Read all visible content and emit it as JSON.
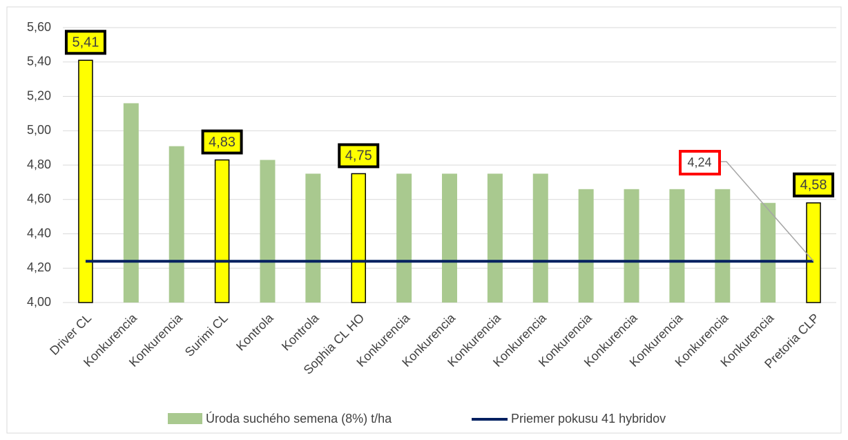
{
  "chart_data": {
    "type": "bar",
    "categories": [
      "Driver CL",
      "Konkurencia",
      "Konkurencia",
      "Surimi CL",
      "Kontrola",
      "Kontrola",
      "Sophia CL HO",
      "Konkurencia",
      "Konkurencia",
      "Konkurencia",
      "Konkurencia",
      "Konkurencia",
      "Konkurencia",
      "Konkurencia",
      "Konkurencia",
      "Konkurencia",
      "Pretoria CLP"
    ],
    "series": [
      {
        "name": "Úroda suchého semena (8%) t/ha",
        "color": "#a9c98f",
        "values": [
          5.41,
          5.16,
          4.91,
          4.83,
          4.83,
          4.75,
          4.75,
          4.75,
          4.75,
          4.75,
          4.75,
          4.66,
          4.66,
          4.66,
          4.66,
          4.58,
          4.58
        ],
        "value_labels": [
          "5,41",
          null,
          null,
          "4,83",
          null,
          null,
          "4,75",
          null,
          null,
          null,
          null,
          null,
          null,
          null,
          null,
          null,
          "4,58"
        ],
        "colors": [
          "#ffff00",
          "#a9c98f",
          "#a9c98f",
          "#ffff00",
          "#a9c98f",
          "#a9c98f",
          "#ffff00",
          "#a9c98f",
          "#a9c98f",
          "#a9c98f",
          "#a9c98f",
          "#a9c98f",
          "#a9c98f",
          "#a9c98f",
          "#a9c98f",
          "#a9c98f",
          "#ffff00"
        ],
        "edgecolors": [
          "#000000",
          null,
          null,
          "#000000",
          null,
          null,
          "#000000",
          null,
          null,
          null,
          null,
          null,
          null,
          null,
          null,
          null,
          "#000000"
        ]
      }
    ],
    "average": {
      "name": "Priemer pokusu 41 hybridov",
      "color": "#002060",
      "value": 4.24,
      "label": "4,24"
    },
    "ylim": [
      4.0,
      5.6
    ],
    "yticks": [
      {
        "value": 4.0,
        "label": "4,00"
      },
      {
        "value": 4.2,
        "label": "4,20"
      },
      {
        "value": 4.4,
        "label": "4,40"
      },
      {
        "value": 4.6,
        "label": "4,60"
      },
      {
        "value": 4.8,
        "label": "4,80"
      },
      {
        "value": 5.0,
        "label": "5,00"
      },
      {
        "value": 5.2,
        "label": "5,20"
      },
      {
        "value": 5.4,
        "label": "5,40"
      },
      {
        "value": 5.6,
        "label": "5,60"
      }
    ],
    "grid": true
  }
}
